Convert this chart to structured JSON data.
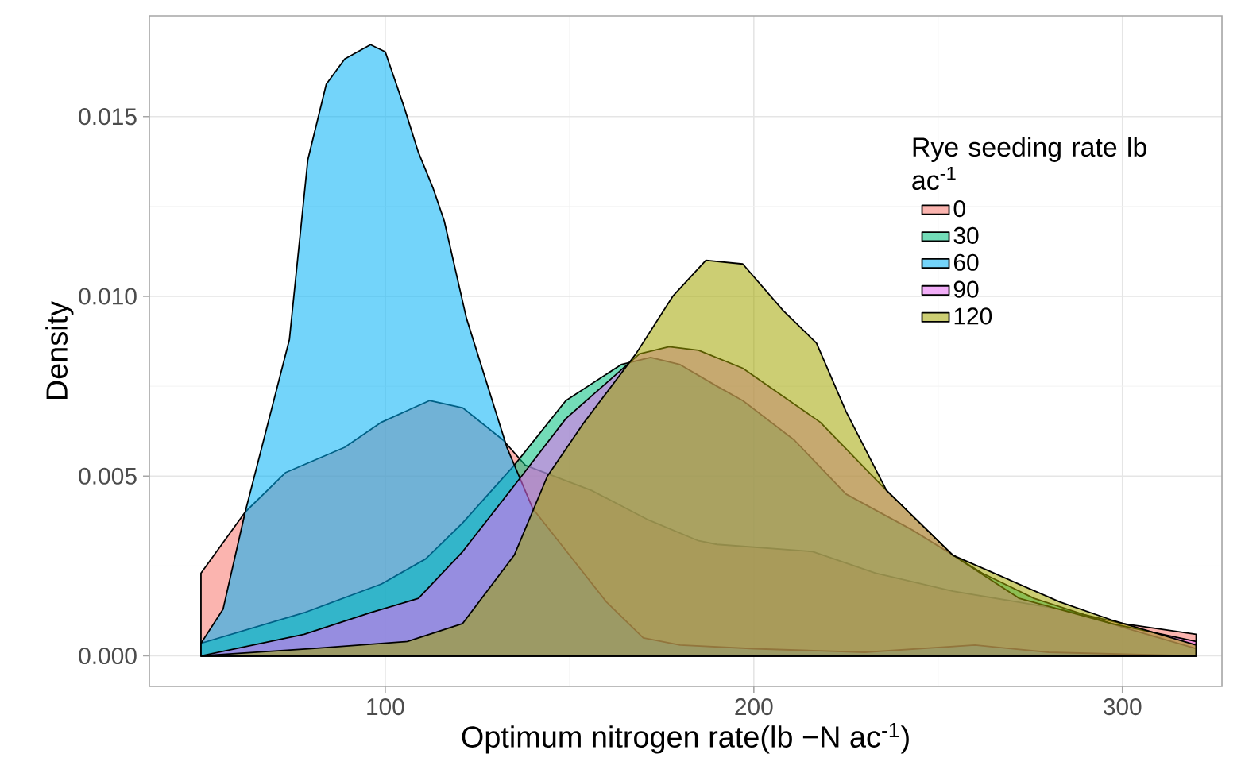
{
  "chart_data": {
    "type": "area",
    "xlabel": "Optimum nitrogen rate(lb −N ac$^{-1}$)",
    "ylabel": "Density",
    "legend_title": "Rye seeding rate lb ac$^{-1}$",
    "xlim": [
      36,
      327
    ],
    "ylim": [
      -0.00085,
      0.0178
    ],
    "xticks": [
      100,
      200,
      300
    ],
    "yticks": [
      {
        "value": 0,
        "label": "0.000"
      },
      {
        "value": 0.005,
        "label": "0.005"
      },
      {
        "value": 0.01,
        "label": "0.010"
      },
      {
        "value": 0.015,
        "label": "0.015"
      }
    ],
    "grid": true,
    "legend": "top right",
    "series": [
      {
        "name": "0",
        "color": "#F8766D",
        "x": [
          50,
          62,
          73,
          89,
          99,
          112,
          121,
          132,
          138,
          156,
          171,
          185,
          190,
          216,
          233,
          254,
          283,
          300,
          320
        ],
        "values": [
          0.0023,
          0.004,
          0.0051,
          0.0058,
          0.0065,
          0.0071,
          0.0069,
          0.006,
          0.0053,
          0.0046,
          0.0038,
          0.0032,
          0.0031,
          0.0029,
          0.0023,
          0.0018,
          0.0013,
          0.0009,
          0.0006
        ]
      },
      {
        "name": "30",
        "color": "#00BF7D",
        "x": [
          50,
          78,
          99,
          111,
          121,
          135,
          149,
          164,
          172,
          180,
          190,
          197,
          211,
          225,
          243,
          262,
          276,
          300,
          320
        ],
        "values": [
          0.00035,
          0.0012,
          0.002,
          0.0027,
          0.0037,
          0.0053,
          0.0071,
          0.0081,
          0.0083,
          0.0081,
          0.0075,
          0.0071,
          0.006,
          0.0045,
          0.0035,
          0.0023,
          0.0016,
          0.0008,
          0.0002
        ]
      },
      {
        "name": "60",
        "color": "#00B0F6",
        "x": [
          50,
          56,
          62,
          74,
          79,
          84,
          89,
          96,
          100,
          105,
          109,
          113,
          116,
          122,
          133,
          140,
          150,
          160,
          170,
          180,
          200,
          230,
          260,
          280,
          320
        ],
        "values": [
          0.00035,
          0.0013,
          0.004,
          0.0088,
          0.0138,
          0.0159,
          0.0166,
          0.017,
          0.0168,
          0.0153,
          0.014,
          0.013,
          0.0121,
          0.0094,
          0.0058,
          0.0041,
          0.0028,
          0.0015,
          0.0005,
          0.0003,
          0.0002,
          0.0001,
          0.0003,
          0.0001,
          0.0
        ]
      },
      {
        "name": "90",
        "color": "#E76BF3",
        "x": [
          50,
          78,
          96,
          109,
          121,
          137,
          149,
          169,
          177,
          185,
          197,
          218,
          236,
          254,
          272,
          297,
          320
        ],
        "values": [
          0.0,
          0.0006,
          0.0012,
          0.0016,
          0.0029,
          0.005,
          0.0066,
          0.0084,
          0.0086,
          0.0085,
          0.008,
          0.0065,
          0.0046,
          0.0028,
          0.0016,
          0.0009,
          0.0004
        ]
      },
      {
        "name": "120",
        "color": "#A3A500",
        "x": [
          50,
          80,
          106,
          121,
          135,
          144,
          154,
          168,
          178,
          187,
          197,
          208,
          217,
          225,
          236,
          254,
          283,
          297,
          320
        ],
        "values": [
          0.0,
          0.0002,
          0.0004,
          0.0009,
          0.0028,
          0.005,
          0.0065,
          0.0084,
          0.01,
          0.011,
          0.0109,
          0.0096,
          0.0087,
          0.0068,
          0.0046,
          0.0028,
          0.0015,
          0.001,
          0.0003
        ]
      }
    ]
  }
}
